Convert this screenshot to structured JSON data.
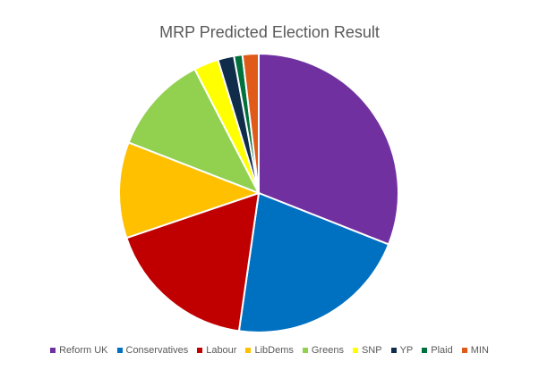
{
  "chart_data": {
    "type": "pie",
    "title": "MRP Predicted Election Result",
    "legend_position": "bottom",
    "categories": [
      "Reform UK",
      "Conservatives",
      "Labour",
      "LibDems",
      "Greens",
      "SNP",
      "YP",
      "Plaid",
      "MIN"
    ],
    "values": [
      31.5,
      21.6,
      17.8,
      11.3,
      11.7,
      2.9,
      1.9,
      1.0,
      1.9
    ],
    "unit": "share of seats (estimated %)",
    "colors": [
      "#7030A0",
      "#0070C0",
      "#C00000",
      "#FFC000",
      "#92D050",
      "#FFFF00",
      "#0F2D4A",
      "#00703C",
      "#E05A1A"
    ]
  }
}
